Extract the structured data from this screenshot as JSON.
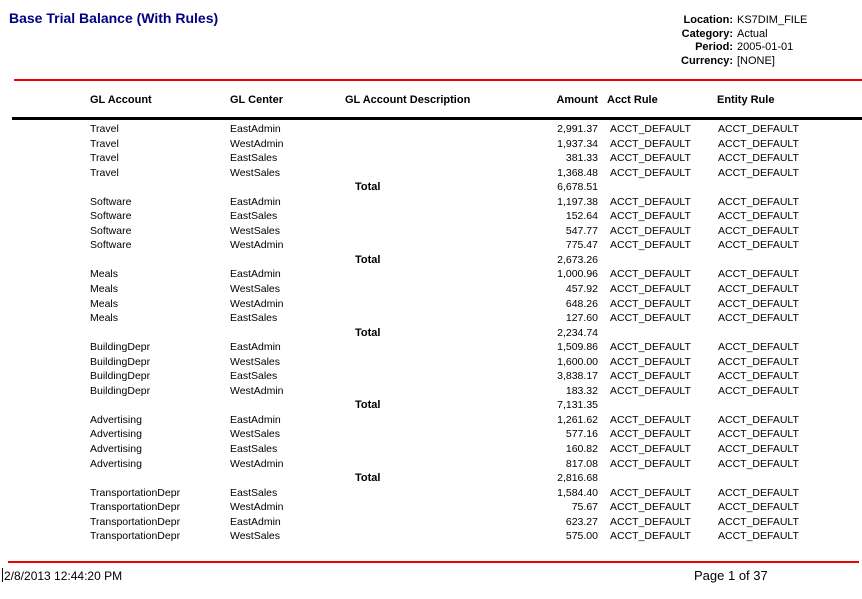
{
  "report": {
    "title": "Base Trial Balance (With Rules)",
    "title_color": "#000082",
    "accent_line_color": "#ee0000",
    "info": [
      {
        "label": "Location:",
        "value": "KS7DIM_FILE"
      },
      {
        "label": "Category:",
        "value": "Actual"
      },
      {
        "label": "Period:",
        "value": "2005-01-01"
      },
      {
        "label": "Currency:",
        "value": "[NONE]"
      }
    ],
    "columns": [
      "GL Account",
      "GL Center",
      "GL Account Description",
      "Amount",
      "Acct Rule",
      "Entity Rule"
    ],
    "total_label": "Total",
    "groups": [
      {
        "rows": [
          [
            "Travel",
            "EastAdmin",
            "",
            "2,991.37",
            "ACCT_DEFAULT",
            "ACCT_DEFAULT"
          ],
          [
            "Travel",
            "WestAdmin",
            "",
            "1,937.34",
            "ACCT_DEFAULT",
            "ACCT_DEFAULT"
          ],
          [
            "Travel",
            "EastSales",
            "",
            "381.33",
            "ACCT_DEFAULT",
            "ACCT_DEFAULT"
          ],
          [
            "Travel",
            "WestSales",
            "",
            "1,368.48",
            "ACCT_DEFAULT",
            "ACCT_DEFAULT"
          ]
        ],
        "total": "6,678.51"
      },
      {
        "rows": [
          [
            "Software",
            "EastAdmin",
            "",
            "1,197.38",
            "ACCT_DEFAULT",
            "ACCT_DEFAULT"
          ],
          [
            "Software",
            "EastSales",
            "",
            "152.64",
            "ACCT_DEFAULT",
            "ACCT_DEFAULT"
          ],
          [
            "Software",
            "WestSales",
            "",
            "547.77",
            "ACCT_DEFAULT",
            "ACCT_DEFAULT"
          ],
          [
            "Software",
            "WestAdmin",
            "",
            "775.47",
            "ACCT_DEFAULT",
            "ACCT_DEFAULT"
          ]
        ],
        "total": "2,673.26"
      },
      {
        "rows": [
          [
            "Meals",
            "EastAdmin",
            "",
            "1,000.96",
            "ACCT_DEFAULT",
            "ACCT_DEFAULT"
          ],
          [
            "Meals",
            "WestSales",
            "",
            "457.92",
            "ACCT_DEFAULT",
            "ACCT_DEFAULT"
          ],
          [
            "Meals",
            "WestAdmin",
            "",
            "648.26",
            "ACCT_DEFAULT",
            "ACCT_DEFAULT"
          ],
          [
            "Meals",
            "EastSales",
            "",
            "127.60",
            "ACCT_DEFAULT",
            "ACCT_DEFAULT"
          ]
        ],
        "total": "2,234.74"
      },
      {
        "rows": [
          [
            "BuildingDepr",
            "EastAdmin",
            "",
            "1,509.86",
            "ACCT_DEFAULT",
            "ACCT_DEFAULT"
          ],
          [
            "BuildingDepr",
            "WestSales",
            "",
            "1,600.00",
            "ACCT_DEFAULT",
            "ACCT_DEFAULT"
          ],
          [
            "BuildingDepr",
            "EastSales",
            "",
            "3,838.17",
            "ACCT_DEFAULT",
            "ACCT_DEFAULT"
          ],
          [
            "BuildingDepr",
            "WestAdmin",
            "",
            "183.32",
            "ACCT_DEFAULT",
            "ACCT_DEFAULT"
          ]
        ],
        "total": "7,131.35"
      },
      {
        "rows": [
          [
            "Advertising",
            "EastAdmin",
            "",
            "1,261.62",
            "ACCT_DEFAULT",
            "ACCT_DEFAULT"
          ],
          [
            "Advertising",
            "WestSales",
            "",
            "577.16",
            "ACCT_DEFAULT",
            "ACCT_DEFAULT"
          ],
          [
            "Advertising",
            "EastSales",
            "",
            "160.82",
            "ACCT_DEFAULT",
            "ACCT_DEFAULT"
          ],
          [
            "Advertising",
            "WestAdmin",
            "",
            "817.08",
            "ACCT_DEFAULT",
            "ACCT_DEFAULT"
          ]
        ],
        "total": "2,816.68"
      },
      {
        "rows": [
          [
            "TransportationDepr",
            "EastSales",
            "",
            "1,584.40",
            "ACCT_DEFAULT",
            "ACCT_DEFAULT"
          ],
          [
            "TransportationDepr",
            "WestAdmin",
            "",
            "75.67",
            "ACCT_DEFAULT",
            "ACCT_DEFAULT"
          ],
          [
            "TransportationDepr",
            "EastAdmin",
            "",
            "623.27",
            "ACCT_DEFAULT",
            "ACCT_DEFAULT"
          ],
          [
            "TransportationDepr",
            "WestSales",
            "",
            "575.00",
            "ACCT_DEFAULT",
            "ACCT_DEFAULT"
          ]
        ],
        "total": null
      }
    ],
    "footer": {
      "timestamp": "2/8/2013 12:44:20 PM",
      "page": "Page 1 of 37"
    }
  }
}
